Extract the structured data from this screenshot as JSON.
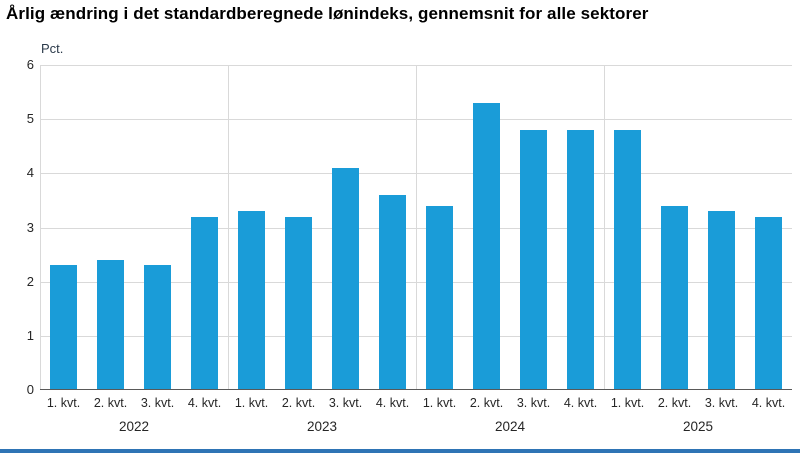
{
  "chart_data": {
    "type": "bar",
    "title": "Årlig ændring i det standardberegnede lønindeks, gennemsnit for alle sektorer",
    "ylabel": "Pct.",
    "xlabel": "",
    "ylim": [
      0,
      6
    ],
    "yticks": [
      0,
      1,
      2,
      3,
      4,
      5,
      6
    ],
    "grid": "horizontal lines at each integer, vertical separators between year groups, no legend",
    "categories": [
      "1. kvt.",
      "2. kvt.",
      "3. kvt.",
      "4. kvt.",
      "1. kvt.",
      "2. kvt.",
      "3. kvt.",
      "4. kvt.",
      "1. kvt.",
      "2. kvt.",
      "3. kvt.",
      "4. kvt.",
      "1. kvt.",
      "2. kvt.",
      "3. kvt.",
      "4. kvt."
    ],
    "values": [
      2.3,
      2.4,
      2.3,
      3.2,
      3.3,
      3.2,
      4.1,
      3.6,
      3.4,
      5.3,
      4.8,
      4.8,
      4.8,
      3.4,
      3.3,
      3.2
    ],
    "year_groups": [
      {
        "label": "2022",
        "quarters": 4
      },
      {
        "label": "2023",
        "quarters": 4
      },
      {
        "label": "2024",
        "quarters": 4
      },
      {
        "label": "2025",
        "quarters": 4
      }
    ],
    "bar_color": "#1A9CD8"
  },
  "colors": {
    "bar": "#1A9CD8",
    "gridline": "#d9d9d9",
    "baseline": "#595959",
    "bottom_rule": "#2E74B5",
    "text": "#262626"
  }
}
